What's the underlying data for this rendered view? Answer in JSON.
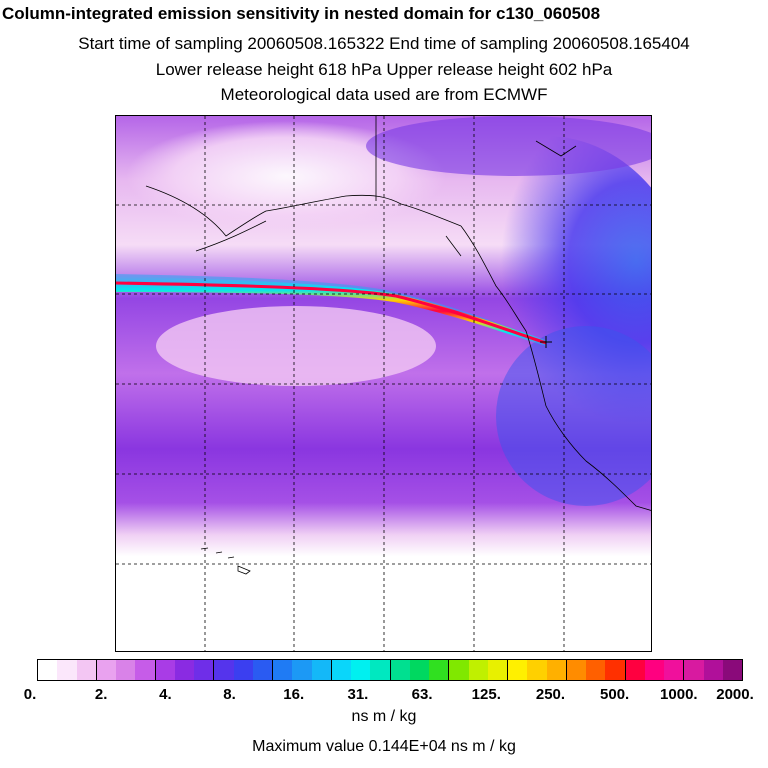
{
  "titles": {
    "main": "Column-integrated emission sensitivity in nested domain for c130_060508",
    "sampling": "Start time of sampling 20060508.165322     End time of sampling 20060508.165404",
    "release": "Lower release height  618 hPa        Upper release height  602 hPa",
    "met": "Meteorological data used are from ECMWF"
  },
  "colorbar": {
    "labels": [
      "0.",
      "2.",
      "4.",
      "8.",
      "16.",
      "31.",
      "63.",
      "125.",
      "250.",
      "500.",
      "1000.",
      "2000."
    ],
    "units": "ns m / kg",
    "colors": [
      "#ffffff",
      "#fbe7fb",
      "#f3c6f3",
      "#e9a2ef",
      "#d982e8",
      "#c65ce8",
      "#a93ce6",
      "#8a2be2",
      "#6f2ee8",
      "#5534ec",
      "#3b3ff0",
      "#2a5bf2",
      "#1f7bf4",
      "#1c99f5",
      "#14b8f8",
      "#0ad6fa",
      "#00f0f0",
      "#00e8c0",
      "#00e090",
      "#00d860",
      "#30e020",
      "#80e800",
      "#c0f000",
      "#e8f000",
      "#fff000",
      "#ffd000",
      "#ffb000",
      "#ff8c00",
      "#ff6000",
      "#ff3000",
      "#ff0040",
      "#ff0080",
      "#f0109c",
      "#d81aa0",
      "#b0109a",
      "#8a0a7a"
    ]
  },
  "max_value": "Maximum value  0.144E+04 ns m / kg",
  "map": {
    "background_gradient": [
      "#ffffff",
      "#f3d0f3",
      "#c45ce6",
      "#7a2ce0",
      "#4a3aee"
    ],
    "plume_colors": [
      "#00f0f0",
      "#30e060",
      "#ffd000",
      "#ff0040"
    ]
  }
}
